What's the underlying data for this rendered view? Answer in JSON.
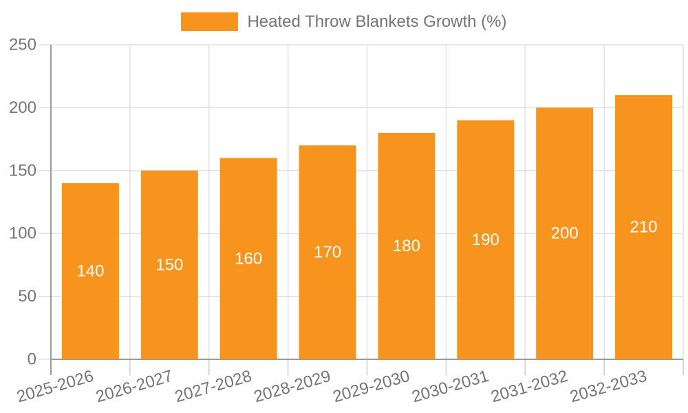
{
  "chart_data": {
    "type": "bar",
    "title": "",
    "legend_label": "Heated Throw Blankets Growth (%)",
    "legend_position": "top",
    "categories": [
      "2025-2026",
      "2026-2027",
      "2027-2028",
      "2028-2029",
      "2029-2030",
      "2030-2031",
      "2031-2032",
      "2032-2033"
    ],
    "series": [
      {
        "name": "Heated Throw Blankets Growth (%)",
        "values": [
          140,
          150,
          160,
          170,
          180,
          190,
          200,
          210
        ]
      }
    ],
    "xlabel": "",
    "ylabel": "",
    "ylim": [
      0,
      250
    ],
    "yticks": [
      0,
      50,
      100,
      150,
      200,
      250
    ],
    "grid": true,
    "value_labels_shown": true,
    "colors": {
      "bar": "#f7941d",
      "axis_text": "#757575",
      "grid_line": "#e2e2e2",
      "axis_line": "#9b9b9b",
      "tick_line": "#cccccc",
      "value_label": "#ffffff",
      "background": "#ffffff"
    }
  }
}
